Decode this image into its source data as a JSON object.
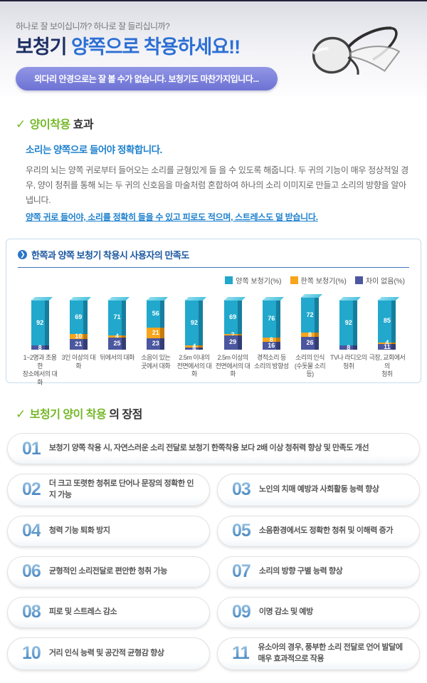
{
  "header": {
    "tagline": "하나로 잘 보이십니까?  하나로 잘 들리십니까?",
    "title_prefix": "보청기",
    "title_main": " 양쪽으로 착용하세요!!",
    "pill": "외다리 안경으로는 잘 볼 수가 없습니다. 보청기도 마찬가지입니다..."
  },
  "effect_section": {
    "check": "✓",
    "title_green": "양이착용",
    "title_dark": " 효과",
    "lead": "소리는 양쪽으로 들어야 정확합니다.",
    "body": "우리의 뇌는 양쪽 귀로부터 들어오는 소리를 균형있게 들 을 수 있도록 해줍니다. 두 귀의 기능이 매우 정상적일 경우, 양이 청취를 통해 뇌는 두 귀의 신호음을 마술처럼 혼합하여 하나의 소리 이미지로 만들고 소리의 방향을 알아냅니다.",
    "emphasis": "양쪽 귀로 들어야, 소리를 정확히 들을 수 있고 피로도 적으며, 스트레스도 덜 받습니다."
  },
  "chart": {
    "title": "한쪽과 양쪽 보청기 착용시 사용자의 만족도",
    "arrow_icon": "❯"
  },
  "chart_data": {
    "type": "bar",
    "stacked": true,
    "title": "한쪽과 양쪽 보청기 착용시 사용자의 만족도",
    "ylim": [
      0,
      100
    ],
    "legend_position": "top-right",
    "grid": false,
    "categories": [
      "1~2명과 조용한\n장소에서의 대화",
      "3인 이상의 대화",
      "뒤에서의 대화",
      "소음이 있는\n곳에서 대화",
      "2.5m 이내의\n전면에서의 대화",
      "2.5m 이상의\n전면에서의 대화",
      "경적소리 등\n소리의 방향성",
      "소리의 인식\n(수돗물 소리 등)",
      "TV나 라디오의\n청취",
      "극장, 교회에서의\n청취"
    ],
    "series": [
      {
        "name": "양쪽 보청기(%)",
        "color": "#21a8cc",
        "side_color": "#167e9e",
        "values": [
          92,
          69,
          71,
          56,
          92,
          69,
          76,
          72,
          92,
          85
        ]
      },
      {
        "name": "한쪽 보청기(%)",
        "color": "#f7a51c",
        "side_color": "#c37c10",
        "values": [
          0,
          10,
          4,
          21,
          4,
          2,
          8,
          8,
          0,
          4
        ]
      },
      {
        "name": "차이 없음(%)",
        "color": "#4b579f",
        "side_color": "#333d74",
        "values": [
          8,
          21,
          25,
          23,
          4,
          29,
          16,
          26,
          8,
          11
        ]
      }
    ]
  },
  "benefits": {
    "check": "✓",
    "title_green": "보청기 양이 착용",
    "title_dark": "의 장점",
    "items": [
      {
        "num": "01",
        "text": "보청기 양쪽 착용 시, 자연스러운 소리 전달로 보청기 한쪽착용 보다 2배 이상 청취력 향상 및 만족도 개선"
      },
      {
        "num": "02",
        "text": "더 크고 또렷한 청취로 단어나 문장의 정확한 인지 가능"
      },
      {
        "num": "03",
        "text": "노인의 치매 예방과 사회활동 능력 향상"
      },
      {
        "num": "04",
        "text": "청력 기능 퇴화 방지"
      },
      {
        "num": "05",
        "text": "소음환경에서도 정확한 청취 및 이해력 증가"
      },
      {
        "num": "06",
        "text": "균형적인 소리전달로 편안한 청취 가능"
      },
      {
        "num": "07",
        "text": "소리의 방향 구별 능력 향상"
      },
      {
        "num": "08",
        "text": "피로 및 스트레스 감소"
      },
      {
        "num": "09",
        "text": "이명 감소 및 예방"
      },
      {
        "num": "10",
        "text": "거리 인식 능력 및 공간적 균형감 향상"
      },
      {
        "num": "11",
        "text": "유소아의 경우, 풍부한 소리 전달로 언어 발달에 매우 효과적으로 작용"
      }
    ]
  }
}
